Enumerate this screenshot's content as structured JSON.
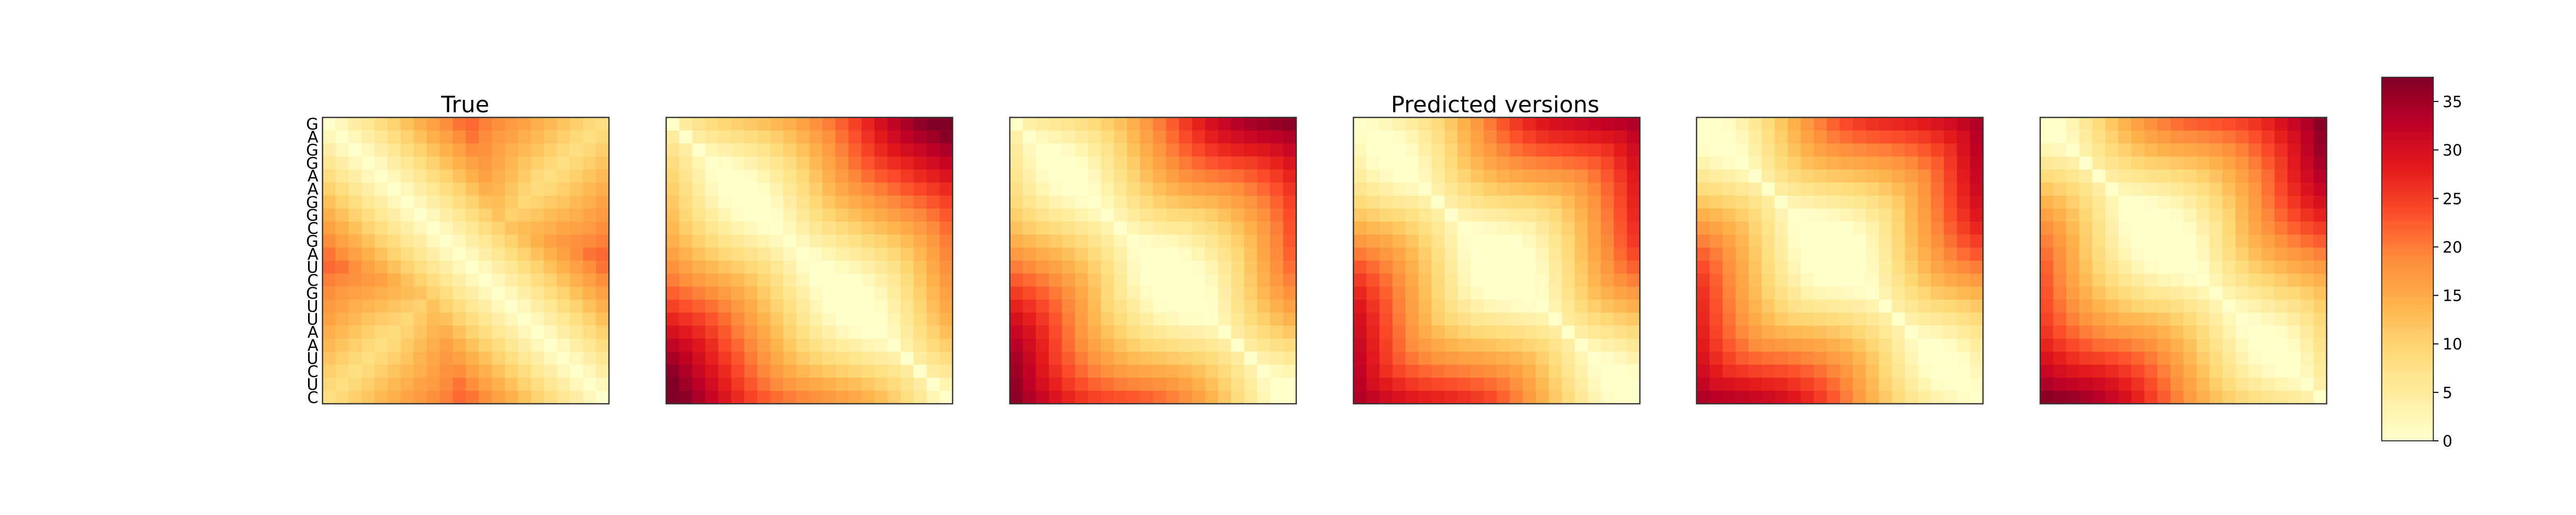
{
  "chart_data": {
    "type": "heatmap",
    "sequence": [
      "G",
      "A",
      "G",
      "G",
      "A",
      "A",
      "G",
      "G",
      "C",
      "G",
      "A",
      "U",
      "C",
      "G",
      "U",
      "U",
      "A",
      "A",
      "U",
      "C",
      "U",
      "C"
    ],
    "colorbar": {
      "colormap": "YlOrRd",
      "range": [
        0,
        37.5
      ],
      "ticks": [
        0,
        5,
        10,
        15,
        20,
        25,
        30,
        35
      ]
    },
    "panels": [
      {
        "title": "True",
        "grid": "off"
      },
      {
        "title": "",
        "grid": "off"
      },
      {
        "title": "",
        "grid": "off"
      },
      {
        "title": "Predicted versions",
        "grid": "off"
      },
      {
        "title": "",
        "grid": "off"
      },
      {
        "title": "",
        "grid": "off"
      }
    ]
  },
  "colors": {
    "colormap_stops": [
      "#ffffcc",
      "#ffeda0",
      "#fed976",
      "#feb24c",
      "#fd8d3c",
      "#fc4e2a",
      "#e31a1c",
      "#bd0026",
      "#800026"
    ]
  }
}
